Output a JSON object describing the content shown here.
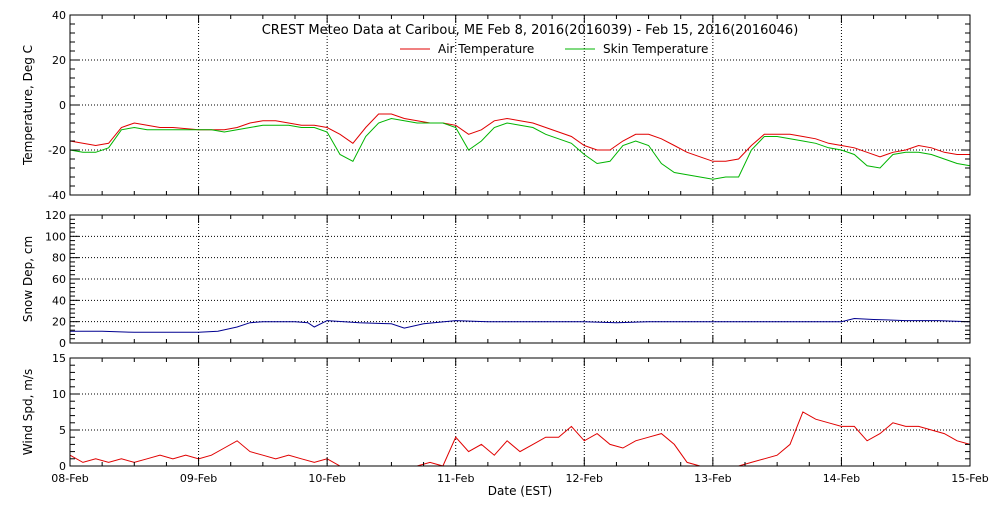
{
  "chart_data": [
    {
      "type": "line",
      "title": "CREST Meteo Data at Caribou, ME   Feb  8, 2016(2016039) - Feb 15, 2016(2016046)",
      "xlabel": "",
      "ylabel": "Temperature, Deg C",
      "ylim": [
        -40,
        40
      ],
      "yticks": [
        -40,
        -20,
        0,
        20,
        40
      ],
      "xlim": [
        0,
        7
      ],
      "grid": true,
      "legend_position": "top-center",
      "series": [
        {
          "name": "Air Temperature",
          "color": "#e00000",
          "x": [
            0,
            0.1,
            0.2,
            0.3,
            0.4,
            0.5,
            0.6,
            0.7,
            0.8,
            0.9,
            1.0,
            1.1,
            1.2,
            1.3,
            1.4,
            1.5,
            1.6,
            1.7,
            1.8,
            1.9,
            2.0,
            2.1,
            2.2,
            2.3,
            2.4,
            2.5,
            2.6,
            2.7,
            2.8,
            2.9,
            3.0,
            3.1,
            3.2,
            3.3,
            3.4,
            3.5,
            3.6,
            3.7,
            3.8,
            3.9,
            4.0,
            4.1,
            4.2,
            4.3,
            4.4,
            4.5,
            4.6,
            4.7,
            4.8,
            4.9,
            5.0,
            5.1,
            5.2,
            5.3,
            5.4,
            5.5,
            5.6,
            5.7,
            5.8,
            5.9,
            6.0,
            6.1,
            6.2,
            6.3,
            6.4,
            6.5,
            6.6,
            6.7,
            6.8,
            6.9,
            7.0
          ],
          "values": [
            -16,
            -17,
            -18,
            -17,
            -10,
            -8,
            -9,
            -10,
            -10,
            -10.5,
            -11,
            -11,
            -11,
            -10,
            -8,
            -7,
            -7,
            -8,
            -9,
            -9,
            -10,
            -13,
            -17,
            -10,
            -4,
            -4,
            -6,
            -7,
            -8,
            -8,
            -9,
            -13,
            -11,
            -7,
            -6,
            -7,
            -8,
            -10,
            -12,
            -14,
            -18,
            -20,
            -20,
            -16,
            -13,
            -13,
            -15,
            -18,
            -21,
            -23,
            -25,
            -25,
            -24,
            -18,
            -13,
            -13,
            -13,
            -14,
            -15,
            -17,
            -18,
            -19,
            -21,
            -23,
            -21,
            -20,
            -18,
            -19,
            -21,
            -22,
            -22
          ]
        },
        {
          "name": "Skin Temperature",
          "color": "#00b400",
          "x": [
            0,
            0.1,
            0.2,
            0.3,
            0.4,
            0.5,
            0.6,
            0.7,
            0.8,
            0.9,
            1.0,
            1.1,
            1.2,
            1.3,
            1.4,
            1.5,
            1.6,
            1.7,
            1.8,
            1.9,
            2.0,
            2.1,
            2.2,
            2.3,
            2.4,
            2.5,
            2.6,
            2.7,
            2.8,
            2.9,
            3.0,
            3.1,
            3.2,
            3.3,
            3.4,
            3.5,
            3.6,
            3.7,
            3.8,
            3.9,
            4.0,
            4.1,
            4.2,
            4.3,
            4.4,
            4.5,
            4.6,
            4.7,
            4.8,
            4.9,
            5.0,
            5.1,
            5.2,
            5.3,
            5.4,
            5.5,
            5.6,
            5.7,
            5.8,
            5.9,
            6.0,
            6.1,
            6.2,
            6.3,
            6.4,
            6.5,
            6.6,
            6.7,
            6.8,
            6.9,
            7.0
          ],
          "values": [
            -20,
            -21,
            -21,
            -19,
            -11,
            -10,
            -11,
            -11,
            -11,
            -11,
            -11,
            -11,
            -12,
            -11,
            -10,
            -9,
            -9,
            -9,
            -10,
            -10,
            -12,
            -22,
            -25,
            -14,
            -8,
            -6,
            -7,
            -8,
            -8,
            -8,
            -10,
            -20,
            -16,
            -10,
            -8,
            -9,
            -10,
            -13,
            -15,
            -17,
            -22,
            -26,
            -25,
            -18,
            -16,
            -18,
            -26,
            -30,
            -31,
            -32,
            -33,
            -32,
            -32,
            -20,
            -14,
            -14,
            -15,
            -16,
            -17,
            -19,
            -20,
            -22,
            -27,
            -28,
            -22,
            -21,
            -21,
            -22,
            -24,
            -26,
            -27
          ]
        }
      ]
    },
    {
      "type": "line",
      "title": "",
      "xlabel": "",
      "ylabel": "Snow Dep, cm",
      "ylim": [
        0,
        120
      ],
      "yticks": [
        0,
        20,
        40,
        60,
        80,
        100,
        120
      ],
      "xlim": [
        0,
        7
      ],
      "grid": true,
      "series": [
        {
          "name": "",
          "color": "#000090",
          "x": [
            0,
            0.25,
            0.5,
            0.75,
            1.0,
            1.15,
            1.3,
            1.4,
            1.5,
            1.75,
            1.85,
            1.9,
            2.0,
            2.25,
            2.5,
            2.6,
            2.75,
            3.0,
            3.25,
            3.5,
            3.75,
            4.0,
            4.25,
            4.5,
            4.75,
            5.0,
            5.25,
            5.5,
            5.75,
            6.0,
            6.1,
            6.25,
            6.5,
            6.75,
            7.0
          ],
          "values": [
            11,
            11,
            10,
            10,
            10,
            11,
            15,
            19,
            20,
            20,
            19,
            15,
            21,
            19,
            18,
            14,
            18,
            21,
            20,
            20,
            20,
            20,
            19,
            20,
            20,
            20,
            20,
            20,
            20,
            20,
            23,
            22,
            21,
            21,
            20
          ]
        }
      ]
    },
    {
      "type": "line",
      "title": "",
      "xlabel": "Date (EST)",
      "ylabel": "Wind Spd, m/s",
      "ylim": [
        0,
        15
      ],
      "yticks": [
        0,
        5,
        10,
        15
      ],
      "xlim": [
        0,
        7
      ],
      "categories": [
        "08-Feb",
        "09-Feb",
        "10-Feb",
        "11-Feb",
        "12-Feb",
        "13-Feb",
        "14-Feb",
        "15-Feb"
      ],
      "grid": true,
      "series": [
        {
          "name": "",
          "color": "#e00000",
          "x": [
            0,
            0.1,
            0.2,
            0.3,
            0.4,
            0.5,
            0.6,
            0.7,
            0.8,
            0.9,
            1.0,
            1.1,
            1.2,
            1.3,
            1.4,
            1.5,
            1.6,
            1.7,
            1.8,
            1.9,
            2.0,
            2.1,
            2.2,
            2.3,
            2.4,
            2.5,
            2.6,
            2.7,
            2.8,
            2.9,
            3.0,
            3.1,
            3.2,
            3.3,
            3.4,
            3.5,
            3.6,
            3.7,
            3.8,
            3.9,
            4.0,
            4.1,
            4.2,
            4.3,
            4.4,
            4.5,
            4.6,
            4.7,
            4.8,
            4.9,
            5.0,
            5.1,
            5.2,
            5.3,
            5.4,
            5.5,
            5.6,
            5.7,
            5.8,
            5.9,
            6.0,
            6.1,
            6.2,
            6.3,
            6.4,
            6.5,
            6.6,
            6.7,
            6.8,
            6.9,
            7.0
          ],
          "values": [
            1.5,
            0.5,
            1,
            0.5,
            1,
            0.5,
            1,
            1.5,
            1,
            1.5,
            1,
            1.5,
            2.5,
            3.5,
            2,
            1.5,
            1,
            1.5,
            1,
            0.5,
            1,
            0,
            0,
            0,
            0,
            0,
            0,
            0,
            0.5,
            0,
            4,
            2,
            3,
            1.5,
            3.5,
            2,
            3,
            4,
            4,
            5.5,
            3.5,
            4.5,
            3,
            2.5,
            3.5,
            4,
            4.5,
            3,
            0.5,
            0,
            0,
            0,
            0,
            0.5,
            1,
            1.5,
            3,
            7.5,
            6.5,
            6,
            5.5,
            5.5,
            3.5,
            4.5,
            6,
            5.5,
            5.5,
            5,
            4.5,
            3.5,
            3
          ]
        }
      ]
    }
  ]
}
